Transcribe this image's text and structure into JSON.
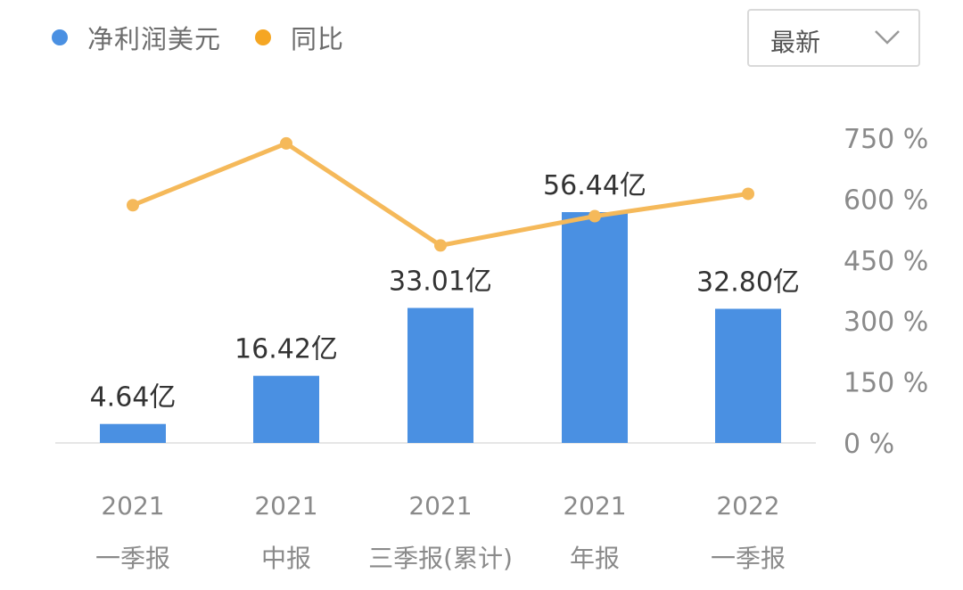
{
  "legend": [
    {
      "label": "净利润美元",
      "color": "#4a90e2"
    },
    {
      "label": "同比",
      "color": "#f5a623"
    }
  ],
  "dropdown": {
    "selected": "最新",
    "icon": "chevron-down-icon"
  },
  "chart_data": {
    "type": "bar",
    "categories": [
      {
        "year": "2021",
        "period": "一季报"
      },
      {
        "year": "2021",
        "period": "中报"
      },
      {
        "year": "2021",
        "period": "三季报(累计)"
      },
      {
        "year": "2021",
        "period": "年报"
      },
      {
        "year": "2022",
        "period": "一季报"
      }
    ],
    "series": [
      {
        "name": "净利润美元",
        "type": "bar",
        "unit": "亿",
        "color": "#4a90e2",
        "values": [
          4.64,
          16.42,
          33.01,
          56.44,
          32.8
        ],
        "labels": [
          "4.64亿",
          "16.42亿",
          "33.01亿",
          "56.44亿",
          "32.80亿"
        ]
      },
      {
        "name": "同比",
        "type": "line",
        "unit": "%",
        "color": "#f5b95a",
        "values": [
          585,
          737,
          486,
          558,
          613
        ]
      }
    ],
    "y_left_range": [
      0,
      56.44
    ],
    "y_right_range": [
      0,
      750
    ],
    "y_right_ticks": [
      "0 %",
      "150 %",
      "300 %",
      "450 %",
      "600 %",
      "750 %"
    ],
    "y_right_tick_values": [
      0,
      150,
      300,
      450,
      600,
      750
    ],
    "grid": false,
    "legend_position": "top-left"
  }
}
